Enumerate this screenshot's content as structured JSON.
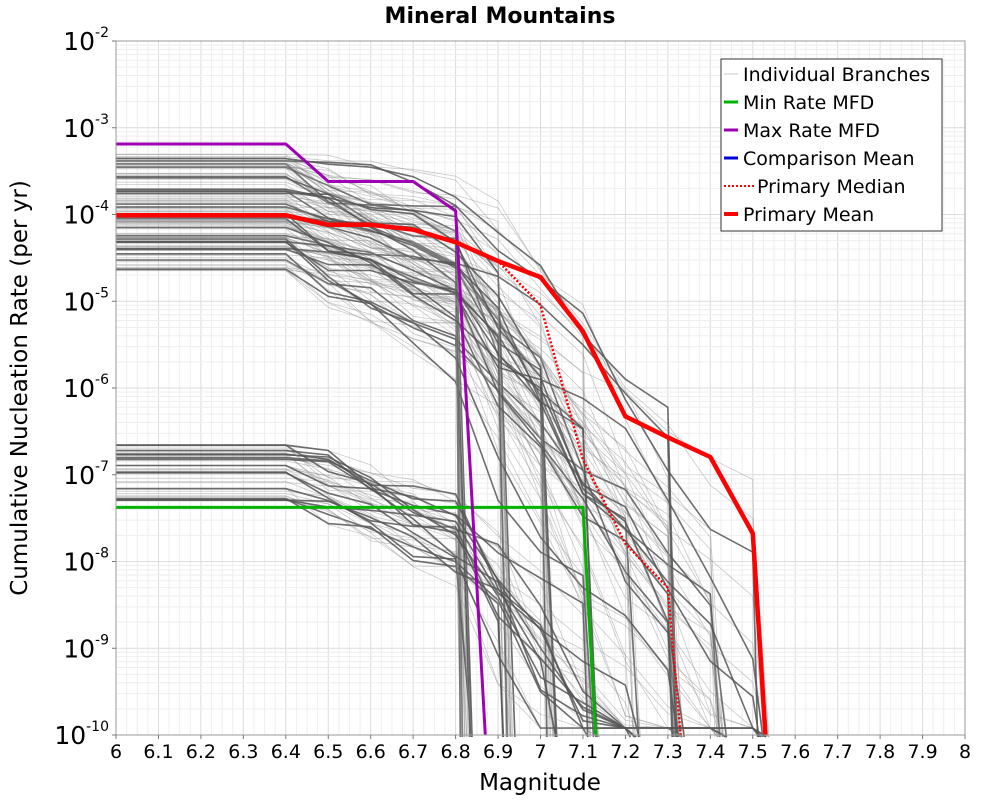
{
  "chart_data": {
    "type": "line",
    "title": "Mineral Mountains",
    "xlabel": "Magnitude",
    "ylabel": "Cumulative Nucleation Rate (per yr)",
    "xlim": [
      6,
      8
    ],
    "ylim": [
      1e-10,
      0.01
    ],
    "y_scale": "log",
    "grid": true,
    "legend_position": "top-right",
    "x_ticks": [
      "6",
      "6.1",
      "6.2",
      "6.3",
      "6.4",
      "6.5",
      "6.6",
      "6.7",
      "6.8",
      "6.9",
      "7",
      "7.1",
      "7.2",
      "7.3",
      "7.4",
      "7.5",
      "7.6",
      "7.7",
      "7.8",
      "7.9",
      "8"
    ],
    "y_ticks": [
      {
        "base": "10",
        "exp": "-2",
        "value": 0.01
      },
      {
        "base": "10",
        "exp": "-3",
        "value": 0.001
      },
      {
        "base": "10",
        "exp": "-4",
        "value": 0.0001
      },
      {
        "base": "10",
        "exp": "-5",
        "value": 1e-05
      },
      {
        "base": "10",
        "exp": "-6",
        "value": 1e-06
      },
      {
        "base": "10",
        "exp": "-7",
        "value": 1e-07
      },
      {
        "base": "10",
        "exp": "-8",
        "value": 1e-08
      },
      {
        "base": "10",
        "exp": "-9",
        "value": 1e-09
      },
      {
        "base": "10",
        "exp": "-10",
        "value": 1e-10
      }
    ],
    "legend": [
      {
        "label": "Individual Branches",
        "color": "#c8c8c8",
        "style": "solid",
        "width": 1
      },
      {
        "label": "Min Rate MFD",
        "color": "#00b400",
        "style": "solid",
        "width": 3
      },
      {
        "label": "Max Rate MFD",
        "color": "#a000b4",
        "style": "solid",
        "width": 3
      },
      {
        "label": "Comparison Mean",
        "color": "#0000dc",
        "style": "solid",
        "width": 3
      },
      {
        "label": "Primary Median",
        "color": "#ff0000",
        "style": "dotted",
        "width": 2
      },
      {
        "label": "Primary Mean",
        "color": "#ff0000",
        "style": "solid",
        "width": 4
      }
    ],
    "series": [
      {
        "name": "Min Rate MFD",
        "color": "#00b400",
        "width": 3,
        "style": "solid",
        "x": [
          6.0,
          6.4,
          6.5,
          6.6,
          6.7,
          6.8,
          6.9,
          7.0,
          7.1,
          7.13
        ],
        "y": [
          4.2e-08,
          4.2e-08,
          4.2e-08,
          4.2e-08,
          4.2e-08,
          4.2e-08,
          4.2e-08,
          4.2e-08,
          4.2e-08,
          1e-10
        ]
      },
      {
        "name": "Max Rate MFD",
        "color": "#a000b4",
        "width": 3,
        "style": "solid",
        "x": [
          6.0,
          6.4,
          6.5,
          6.6,
          6.7,
          6.8,
          6.87
        ],
        "y": [
          0.00065,
          0.00065,
          0.00024,
          0.00024,
          0.00024,
          0.00011,
          1e-10
        ]
      },
      {
        "name": "Primary Median",
        "color": "#ff0000",
        "width": 2.5,
        "style": "dotted",
        "x": [
          6.0,
          6.4,
          6.5,
          6.6,
          6.7,
          6.8,
          6.9,
          7.0,
          7.1,
          7.2,
          7.3,
          7.33
        ],
        "y": [
          9.8e-05,
          9.8e-05,
          7.6e-05,
          7.6e-05,
          6.7e-05,
          4.8e-05,
          2.9e-05,
          9e-06,
          1.5e-07,
          1.6e-08,
          5e-09,
          1e-10
        ]
      },
      {
        "name": "Primary Mean",
        "color": "#ff0000",
        "width": 4.5,
        "style": "solid",
        "x": [
          6.0,
          6.4,
          6.5,
          6.6,
          6.7,
          6.8,
          6.9,
          7.0,
          7.1,
          7.2,
          7.3,
          7.4,
          7.5,
          7.53
        ],
        "y": [
          9.8e-05,
          9.8e-05,
          7.6e-05,
          7.6e-05,
          6.7e-05,
          4.8e-05,
          2.9e-05,
          1.9e-05,
          4.5e-06,
          4.7e-07,
          2.7e-07,
          1.6e-07,
          2.1e-08,
          1e-10
        ]
      }
    ],
    "branches_description_colors": {
      "faint": "#8a8a8a",
      "dark": "#555555"
    }
  }
}
